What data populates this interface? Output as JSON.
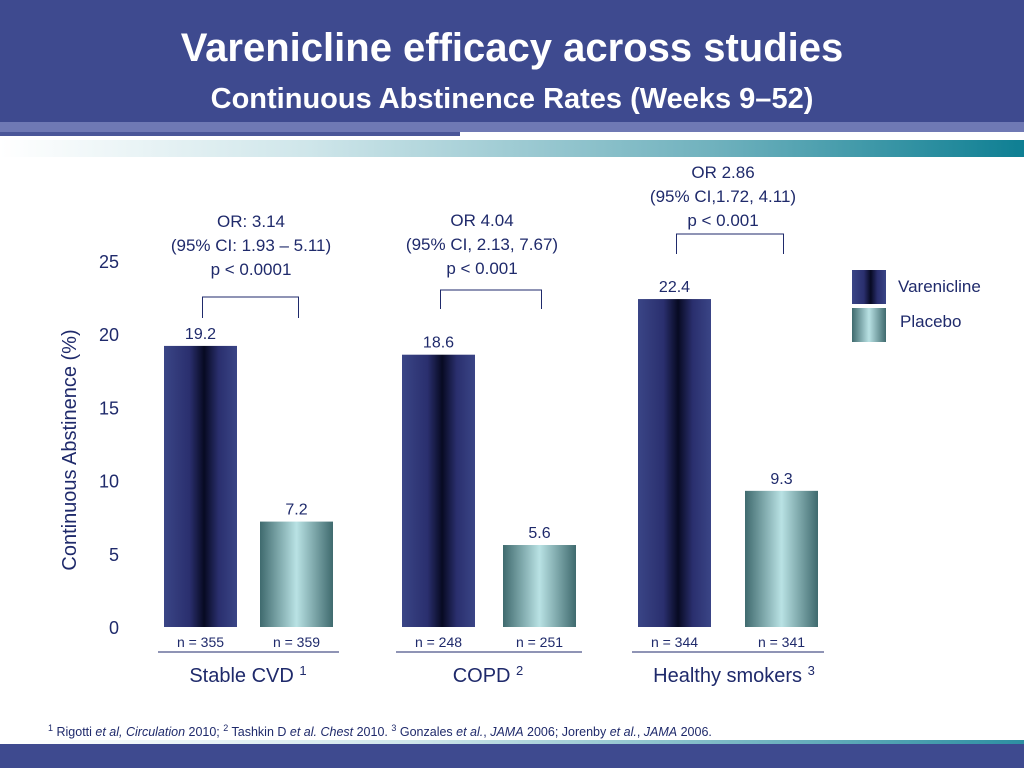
{
  "title": "Varenicline efficacy across studies",
  "subtitle": "Continuous Abstinence Rates (Weeks 9–52)",
  "colors": {
    "header": "#3e4a8f",
    "varenicline": "#2a2f6e",
    "placebo": "#9ccfd2",
    "text": "#1f2a6b"
  },
  "legend": {
    "varenicline": "Varenicline",
    "placebo": "Placebo"
  },
  "chart_data": {
    "type": "bar",
    "ylabel": "Continuous Abstinence (%)",
    "xlabel": "",
    "ylim": [
      0,
      25
    ],
    "yticks": [
      0,
      5,
      10,
      15,
      20,
      25
    ],
    "grid": false,
    "legend_position": "right",
    "categories": [
      "Stable CVD",
      "COPD",
      "Healthy smokers"
    ],
    "category_refs": [
      "1",
      "2",
      "3"
    ],
    "series": [
      {
        "name": "Varenicline",
        "values": [
          19.2,
          18.6,
          22.4
        ],
        "value_labels": [
          "19.2",
          "18.6",
          "22.4"
        ],
        "n_labels": [
          "n = 355",
          "n = 248",
          "n = 344"
        ]
      },
      {
        "name": "Placebo",
        "values": [
          7.2,
          5.6,
          9.3
        ],
        "value_labels": [
          "7.2",
          "5.6",
          "9.3"
        ],
        "n_labels": [
          "n = 359",
          "n = 251",
          "n = 341"
        ]
      }
    ],
    "annotations": [
      [
        "OR: 3.14",
        "(95% CI: 1.93 – 5.11)",
        "p < 0.0001"
      ],
      [
        "OR 4.04",
        "(95% CI, 2.13, 7.67)",
        "p < 0.001"
      ],
      [
        "OR 2.86",
        "(95% CI,1.72, 4.11)",
        "p < 0.001"
      ]
    ]
  },
  "footnote": {
    "ref1_num": "1",
    "ref1_author": "Rigotti ",
    "ref1_etal": "et al, Circulation",
    "ref1_year": " 2010;  ",
    "ref2_num": "2",
    "ref2_author": "Tashkin D ",
    "ref2_etal": "et al. Chest",
    "ref2_year": " 2010. ",
    "ref3_num": "3",
    "ref3_author": "Gonzales ",
    "ref3_etal": "et al.",
    "ref3_sep": ", ",
    "ref3_journal": "JAMA",
    "ref3_year": " 2006; Jorenby ",
    "ref4_etal": "et al.",
    "ref4_sep": ", ",
    "ref4_journal": "JAMA",
    "ref4_year": " 2006."
  }
}
